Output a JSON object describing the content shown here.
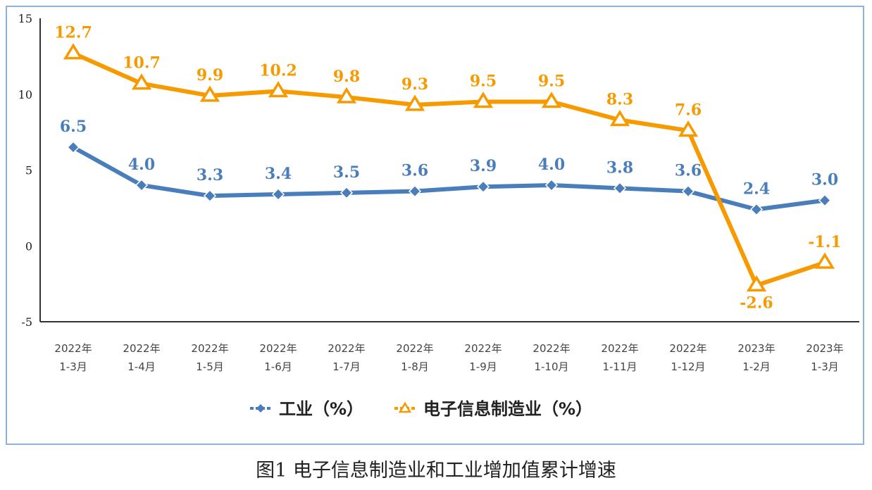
{
  "chart_data": {
    "type": "line",
    "title": "图1  电子信息制造业和工业增加值累计增速",
    "categories": [
      "2022年\n1-3月",
      "2022年\n1-4月",
      "2022年\n1-5月",
      "2022年\n1-6月",
      "2022年\n1-7月",
      "2022年\n1-8月",
      "2022年\n1-9月",
      "2022年\n1-10月",
      "2022年\n1-11月",
      "2022年\n1-12月",
      "2023年\n1-2月",
      "2023年\n1-3月"
    ],
    "series": [
      {
        "name": "工业（%）",
        "color": "#4a7ebb",
        "marker": "diamond",
        "values": [
          6.5,
          4.0,
          3.3,
          3.4,
          3.5,
          3.6,
          3.9,
          4.0,
          3.8,
          3.6,
          2.4,
          3.0
        ]
      },
      {
        "name": "电子信息制造业（%）",
        "color": "#f79a00",
        "marker": "triangle-open",
        "values": [
          12.7,
          10.7,
          9.9,
          10.2,
          9.8,
          9.3,
          9.5,
          9.5,
          8.3,
          7.6,
          -2.6,
          -1.1
        ]
      }
    ],
    "ylim": [
      -5,
      15
    ],
    "yticks": [
      15,
      10,
      5,
      0,
      -5
    ],
    "grid": false,
    "legend": "bottom"
  }
}
